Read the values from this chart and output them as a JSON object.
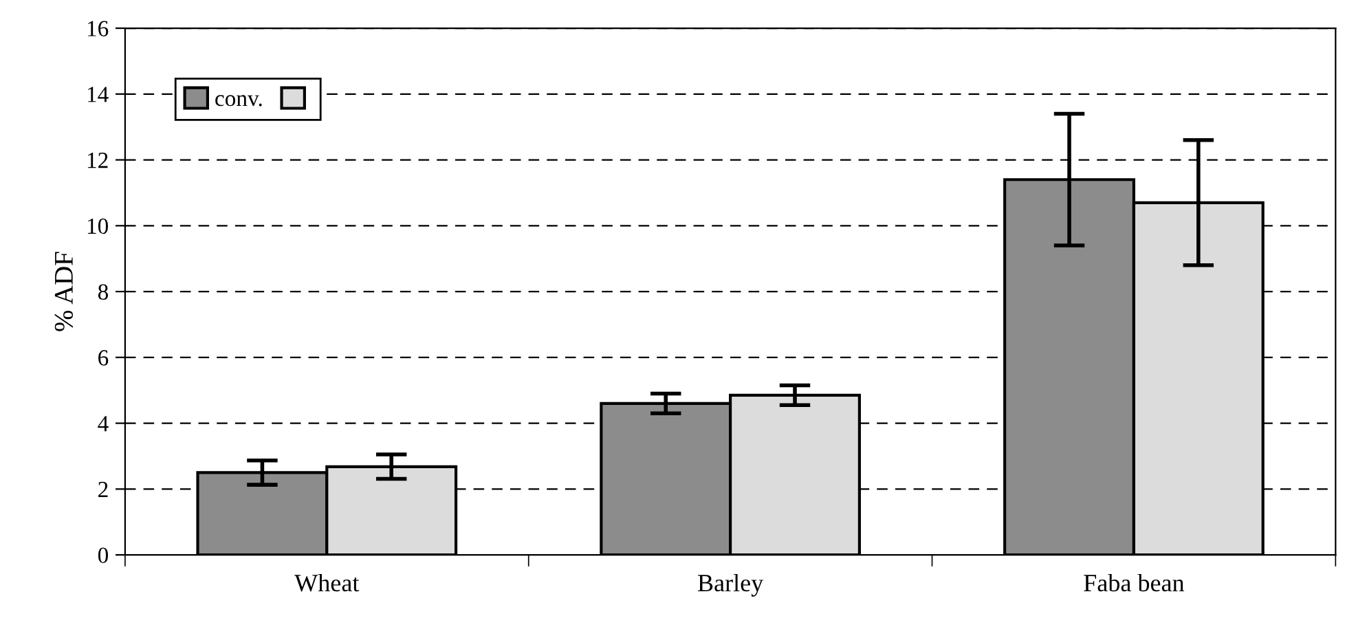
{
  "chart_data": {
    "type": "bar",
    "ylabel": "% ADF",
    "categories": [
      "Wheat",
      "Barley",
      "Faba bean"
    ],
    "series": [
      {
        "name": "conv.",
        "color": "#8c8c8c",
        "values": [
          2.5,
          4.6,
          11.4
        ],
        "errors": [
          0.37,
          0.3,
          2.0
        ]
      },
      {
        "color": "#dcdcdc",
        "values": [
          2.68,
          4.85,
          10.7
        ],
        "errors": [
          0.37,
          0.3,
          1.9
        ]
      }
    ],
    "ylim": [
      0,
      16
    ],
    "yticks": [
      0,
      2,
      4,
      6,
      8,
      10,
      12,
      14,
      16
    ],
    "grid": "y",
    "legend": "top left"
  }
}
